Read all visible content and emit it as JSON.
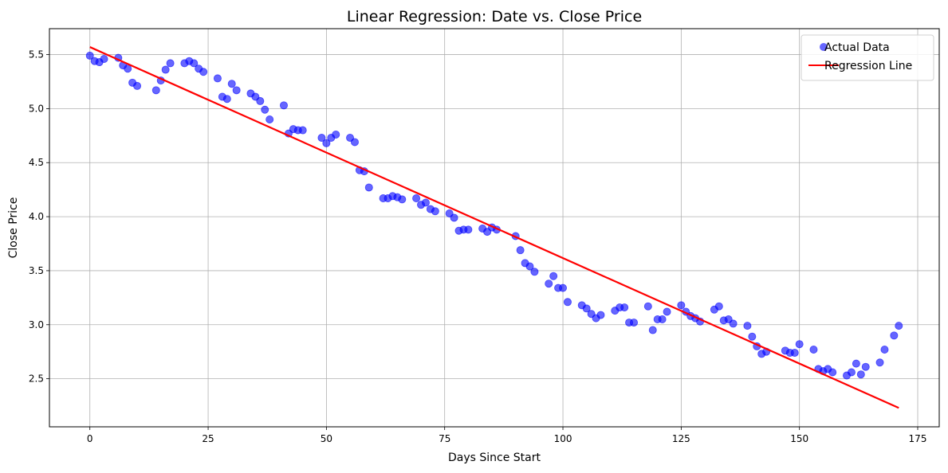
{
  "chart_data": {
    "type": "scatter",
    "title": "Linear Regression: Date vs. Close Price",
    "xlabel": "Days Since Start",
    "ylabel": "Close Price",
    "xlim": [
      -8.55,
      179.55
    ],
    "ylim": [
      2.055,
      5.74
    ],
    "xticks": [
      0,
      25,
      50,
      75,
      100,
      125,
      150,
      175
    ],
    "yticks": [
      2.5,
      3.0,
      3.5,
      4.0,
      4.5,
      5.0,
      5.5
    ],
    "grid": true,
    "legend_position": "top-right",
    "series": [
      {
        "name": "Actual Data",
        "kind": "scatter",
        "color": "#0000ff",
        "opacity": 0.6,
        "points": [
          [
            0,
            5.49
          ],
          [
            1,
            5.44
          ],
          [
            2,
            5.43
          ],
          [
            3,
            5.46
          ],
          [
            6,
            5.47
          ],
          [
            7,
            5.4
          ],
          [
            8,
            5.37
          ],
          [
            9,
            5.24
          ],
          [
            10,
            5.21
          ],
          [
            14,
            5.17
          ],
          [
            15,
            5.26
          ],
          [
            16,
            5.36
          ],
          [
            17,
            5.42
          ],
          [
            20,
            5.42
          ],
          [
            21,
            5.44
          ],
          [
            22,
            5.42
          ],
          [
            23,
            5.37
          ],
          [
            24,
            5.34
          ],
          [
            27,
            5.28
          ],
          [
            28,
            5.11
          ],
          [
            29,
            5.09
          ],
          [
            30,
            5.23
          ],
          [
            31,
            5.17
          ],
          [
            34,
            5.14
          ],
          [
            35,
            5.11
          ],
          [
            36,
            5.07
          ],
          [
            37,
            4.99
          ],
          [
            38,
            4.9
          ],
          [
            41,
            5.03
          ],
          [
            42,
            4.77
          ],
          [
            43,
            4.81
          ],
          [
            44,
            4.8
          ],
          [
            45,
            4.8
          ],
          [
            49,
            4.73
          ],
          [
            50,
            4.68
          ],
          [
            51,
            4.73
          ],
          [
            52,
            4.76
          ],
          [
            55,
            4.73
          ],
          [
            56,
            4.69
          ],
          [
            57,
            4.43
          ],
          [
            58,
            4.42
          ],
          [
            59,
            4.27
          ],
          [
            62,
            4.17
          ],
          [
            63,
            4.17
          ],
          [
            64,
            4.19
          ],
          [
            65,
            4.18
          ],
          [
            66,
            4.16
          ],
          [
            69,
            4.17
          ],
          [
            70,
            4.11
          ],
          [
            71,
            4.13
          ],
          [
            72,
            4.07
          ],
          [
            73,
            4.05
          ],
          [
            76,
            4.03
          ],
          [
            77,
            3.99
          ],
          [
            78,
            3.87
          ],
          [
            79,
            3.88
          ],
          [
            80,
            3.88
          ],
          [
            83,
            3.89
          ],
          [
            84,
            3.86
          ],
          [
            85,
            3.9
          ],
          [
            86,
            3.88
          ],
          [
            90,
            3.82
          ],
          [
            91,
            3.69
          ],
          [
            92,
            3.57
          ],
          [
            93,
            3.54
          ],
          [
            94,
            3.49
          ],
          [
            97,
            3.38
          ],
          [
            98,
            3.45
          ],
          [
            99,
            3.34
          ],
          [
            100,
            3.34
          ],
          [
            101,
            3.21
          ],
          [
            104,
            3.18
          ],
          [
            105,
            3.15
          ],
          [
            106,
            3.1
          ],
          [
            107,
            3.06
          ],
          [
            108,
            3.09
          ],
          [
            111,
            3.13
          ],
          [
            112,
            3.16
          ],
          [
            113,
            3.16
          ],
          [
            114,
            3.02
          ],
          [
            115,
            3.02
          ],
          [
            118,
            3.17
          ],
          [
            119,
            2.95
          ],
          [
            120,
            3.05
          ],
          [
            121,
            3.05
          ],
          [
            122,
            3.12
          ],
          [
            125,
            3.18
          ],
          [
            126,
            3.12
          ],
          [
            127,
            3.08
          ],
          [
            128,
            3.06
          ],
          [
            129,
            3.03
          ],
          [
            132,
            3.14
          ],
          [
            133,
            3.17
          ],
          [
            134,
            3.04
          ],
          [
            135,
            3.05
          ],
          [
            136,
            3.01
          ],
          [
            139,
            2.99
          ],
          [
            140,
            2.89
          ],
          [
            141,
            2.8
          ],
          [
            142,
            2.73
          ],
          [
            143,
            2.75
          ],
          [
            147,
            2.76
          ],
          [
            148,
            2.74
          ],
          [
            149,
            2.74
          ],
          [
            150,
            2.82
          ],
          [
            153,
            2.77
          ],
          [
            154,
            2.59
          ],
          [
            155,
            2.57
          ],
          [
            156,
            2.59
          ],
          [
            157,
            2.56
          ],
          [
            160,
            2.53
          ],
          [
            161,
            2.56
          ],
          [
            162,
            2.64
          ],
          [
            163,
            2.54
          ],
          [
            164,
            2.61
          ],
          [
            167,
            2.65
          ],
          [
            168,
            2.77
          ],
          [
            170,
            2.9
          ],
          [
            171,
            2.99
          ]
        ]
      },
      {
        "name": "Regression Line",
        "kind": "line",
        "color": "#ff0000",
        "points": [
          [
            0,
            5.57
          ],
          [
            171,
            2.23
          ]
        ]
      }
    ]
  }
}
